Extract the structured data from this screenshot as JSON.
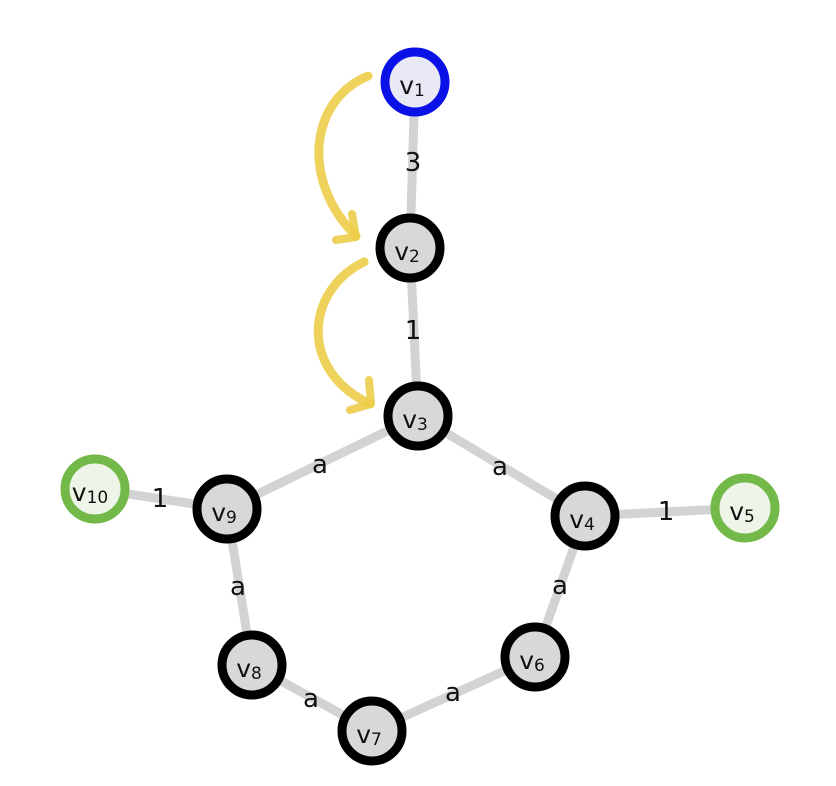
{
  "graph": {
    "nodes": [
      {
        "id": "v1",
        "base": "v",
        "sub": "1",
        "role": "start"
      },
      {
        "id": "v2",
        "base": "v",
        "sub": "2",
        "role": "normal"
      },
      {
        "id": "v3",
        "base": "v",
        "sub": "3",
        "role": "normal"
      },
      {
        "id": "v4",
        "base": "v",
        "sub": "4",
        "role": "normal"
      },
      {
        "id": "v5",
        "base": "v",
        "sub": "5",
        "role": "end"
      },
      {
        "id": "v6",
        "base": "v",
        "sub": "6",
        "role": "normal"
      },
      {
        "id": "v7",
        "base": "v",
        "sub": "7",
        "role": "normal"
      },
      {
        "id": "v8",
        "base": "v",
        "sub": "8",
        "role": "normal"
      },
      {
        "id": "v9",
        "base": "v",
        "sub": "9",
        "role": "normal"
      },
      {
        "id": "v10",
        "base": "v",
        "sub": "10",
        "role": "end"
      }
    ],
    "edges": [
      {
        "from": "v1",
        "to": "v2",
        "label": "3"
      },
      {
        "from": "v2",
        "to": "v3",
        "label": "1"
      },
      {
        "from": "v3",
        "to": "v4",
        "label": "a"
      },
      {
        "from": "v4",
        "to": "v5",
        "label": "1"
      },
      {
        "from": "v4",
        "to": "v6",
        "label": "a"
      },
      {
        "from": "v6",
        "to": "v7",
        "label": "a"
      },
      {
        "from": "v7",
        "to": "v8",
        "label": "a"
      },
      {
        "from": "v8",
        "to": "v9",
        "label": "a"
      },
      {
        "from": "v9",
        "to": "v3",
        "label": "a"
      },
      {
        "from": "v9",
        "to": "v10",
        "label": "1"
      }
    ],
    "highlighted_path": [
      {
        "from": "v1",
        "to": "v2"
      },
      {
        "from": "v2",
        "to": "v3"
      }
    ]
  },
  "colors": {
    "start_node_border": "#0a11e6",
    "end_node_border": "#73b94a",
    "normal_node_border": "#000000",
    "edge": "#d3d3d3",
    "path_arrow": "#eccd49"
  }
}
